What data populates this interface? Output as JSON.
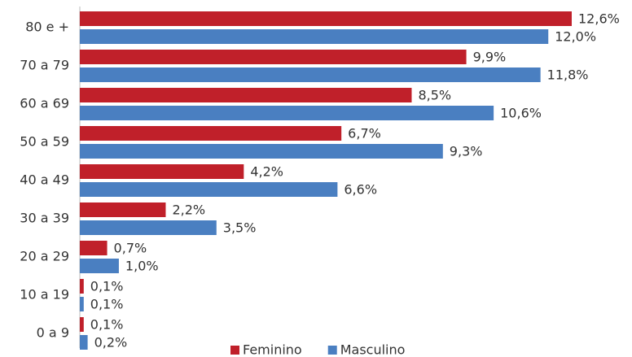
{
  "chart_data": {
    "type": "barh",
    "categories": [
      "80 e +",
      "70 a 79",
      "60 a 69",
      "50 a 59",
      "40 a 49",
      "30 a 39",
      "20 a 29",
      "10 a 19",
      "0 a 9"
    ],
    "series": [
      {
        "name": "Feminino",
        "color": "#c0202a",
        "values": [
          12.6,
          9.9,
          8.5,
          6.7,
          4.2,
          2.2,
          0.7,
          0.1,
          0.1
        ],
        "value_labels": [
          "12,6%",
          "9,9%",
          "8,5%",
          "6,7%",
          "4,2%",
          "2,2%",
          "0,7%",
          "0,1%",
          "0,1%"
        ]
      },
      {
        "name": "Masculino",
        "color": "#4a7fc1",
        "values": [
          12.0,
          11.8,
          10.6,
          9.3,
          6.6,
          3.5,
          1.0,
          0.1,
          0.2
        ],
        "value_labels": [
          "12,0%",
          "11,8%",
          "10,6%",
          "9,3%",
          "6,6%",
          "3,5%",
          "1,0%",
          "0,1%",
          "0,2%"
        ]
      }
    ],
    "legend": "bottom"
  }
}
